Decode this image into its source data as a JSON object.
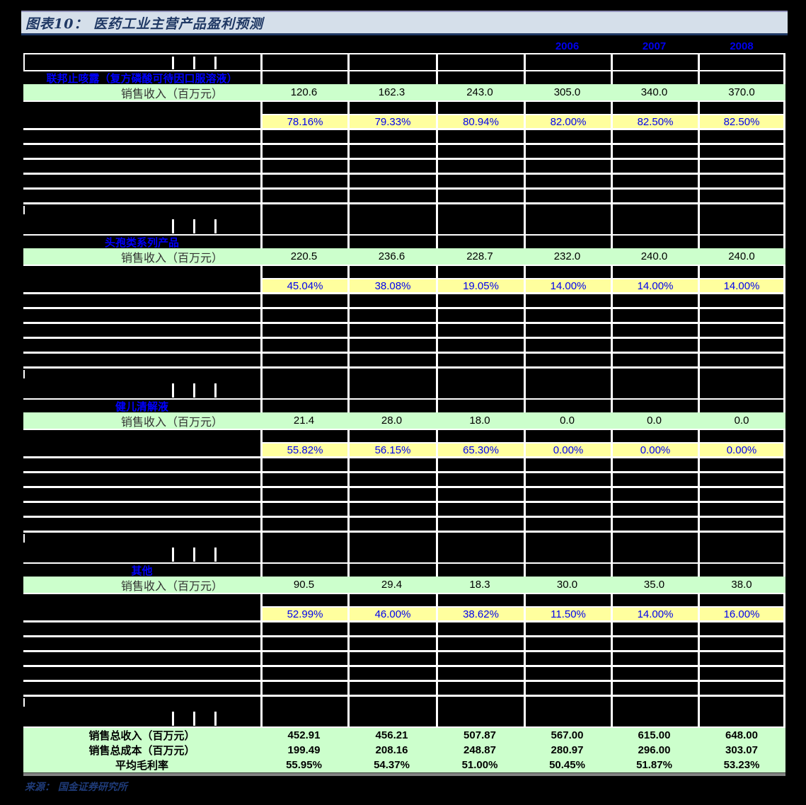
{
  "title": "图表10： 医药工业主营产品盈利预测",
  "source": "来源： 国金证券研究所",
  "colors": {
    "page_background": "#000000",
    "title_bar_background": "#D5DFEA",
    "title_text": "#1F3864",
    "revenue_row_background": "#CCFFCC",
    "margin_row_background": "#FFFF9E",
    "blue_text": "#0000EE",
    "summary_background": "#CCFFCC"
  },
  "chart_data": {
    "type": "table",
    "title": "图表10： 医药工业主营产品盈利预测",
    "forecast_year_headers": [
      "2006",
      "2007",
      "2008"
    ],
    "row_label_revenue": "销售收入（百万元）",
    "sections": [
      {
        "name": "联邦止咳露（复方磷酸可待因口服溶液）",
        "revenue": [
          "120.6",
          "162.3",
          "243.0",
          "305.0",
          "340.0",
          "370.0"
        ],
        "gross_margin": [
          "78.16%",
          "79.33%",
          "80.94%",
          "82.00%",
          "82.50%",
          "82.50%"
        ]
      },
      {
        "name": "头孢类系列产品",
        "revenue": [
          "220.5",
          "236.6",
          "228.7",
          "232.0",
          "240.0",
          "240.0"
        ],
        "gross_margin": [
          "45.04%",
          "38.08%",
          "19.05%",
          "14.00%",
          "14.00%",
          "14.00%"
        ]
      },
      {
        "name": "健儿清解液",
        "revenue": [
          "21.4",
          "28.0",
          "18.0",
          "0.0",
          "0.0",
          "0.0"
        ],
        "gross_margin": [
          "55.82%",
          "56.15%",
          "65.30%",
          "0.00%",
          "0.00%",
          "0.00%"
        ]
      },
      {
        "name": "其他",
        "revenue": [
          "90.5",
          "29.4",
          "18.3",
          "30.0",
          "35.0",
          "38.0"
        ],
        "gross_margin": [
          "52.99%",
          "46.00%",
          "38.62%",
          "11.50%",
          "14.00%",
          "16.00%"
        ]
      }
    ],
    "summary": [
      {
        "label": "销售总收入（百万元）",
        "values": [
          "452.91",
          "456.21",
          "507.87",
          "567.00",
          "615.00",
          "648.00"
        ]
      },
      {
        "label": "销售总成本（百万元）",
        "values": [
          "199.49",
          "208.16",
          "248.87",
          "280.97",
          "296.00",
          "303.07"
        ]
      },
      {
        "label": "平均毛利率",
        "values": [
          "55.95%",
          "54.37%",
          "51.00%",
          "50.45%",
          "51.87%",
          "53.23%"
        ]
      }
    ],
    "source": "来源： 国金证券研究所"
  }
}
